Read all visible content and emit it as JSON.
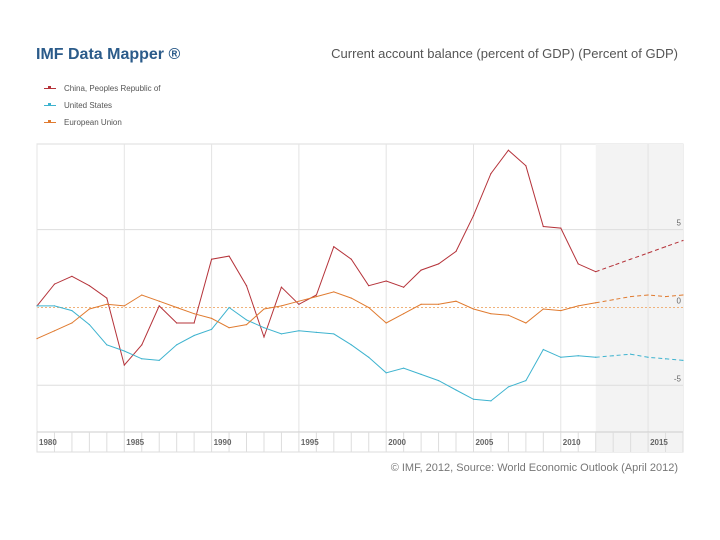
{
  "header": {
    "brand": "IMF Data Mapper ®",
    "title": "Current account balance (percent of GDP) (Percent of GDP)"
  },
  "footer": {
    "source": "© IMF, 2012, Source: World Economic Outlook (April 2012)"
  },
  "chart_data": {
    "type": "line",
    "title": "Current account balance (percent of GDP) (Percent of GDP)",
    "xlabel": "",
    "ylabel": "",
    "xlim": [
      1980,
      2017
    ],
    "ylim": [
      -8,
      10.5
    ],
    "projection_start": 2012,
    "grid": true,
    "legend_position": "top-left",
    "yticks": [
      5,
      0,
      -5
    ],
    "xticks": [
      1980,
      1985,
      1990,
      1995,
      2000,
      2005,
      2010,
      2015
    ],
    "x": [
      1980,
      1981,
      1982,
      1983,
      1984,
      1985,
      1986,
      1987,
      1988,
      1989,
      1990,
      1991,
      1992,
      1993,
      1994,
      1995,
      1996,
      1997,
      1998,
      1999,
      2000,
      2001,
      2002,
      2003,
      2004,
      2005,
      2006,
      2007,
      2008,
      2009,
      2010,
      2011,
      2012,
      2013,
      2014,
      2015,
      2016,
      2017
    ],
    "series": [
      {
        "name": "China, Peoples Republic of",
        "color": "#b5333a",
        "values": [
          0.1,
          1.5,
          2.0,
          1.4,
          0.6,
          -3.7,
          -2.4,
          0.1,
          -1.0,
          -1.0,
          3.1,
          3.3,
          1.4,
          -1.9,
          1.3,
          0.2,
          0.8,
          3.9,
          3.1,
          1.4,
          1.7,
          1.3,
          2.4,
          2.8,
          3.6,
          5.9,
          8.6,
          10.1,
          9.1,
          5.2,
          5.1,
          2.8,
          2.3,
          2.7,
          3.1,
          3.5,
          3.9,
          4.3
        ]
      },
      {
        "name": "United States",
        "color": "#3eb3cf",
        "values": [
          0.1,
          0.1,
          -0.2,
          -1.1,
          -2.4,
          -2.8,
          -3.3,
          -3.4,
          -2.4,
          -1.8,
          -1.4,
          0.0,
          -0.8,
          -1.3,
          -1.7,
          -1.5,
          -1.6,
          -1.7,
          -2.4,
          -3.2,
          -4.2,
          -3.9,
          -4.3,
          -4.7,
          -5.3,
          -5.9,
          -6.0,
          -5.1,
          -4.7,
          -2.7,
          -3.2,
          -3.1,
          -3.2,
          -3.1,
          -3.0,
          -3.2,
          -3.3,
          -3.4
        ]
      },
      {
        "name": "European Union",
        "color": "#e07b30",
        "values": [
          -2.0,
          -1.5,
          -1.0,
          -0.1,
          0.2,
          0.1,
          0.8,
          0.4,
          0.0,
          -0.4,
          -0.7,
          -1.3,
          -1.1,
          -0.1,
          0.1,
          0.4,
          0.7,
          1.0,
          0.6,
          0.0,
          -1.0,
          -0.4,
          0.2,
          0.2,
          0.4,
          -0.1,
          -0.4,
          -0.5,
          -1.0,
          -0.1,
          -0.2,
          0.1,
          0.3,
          0.5,
          0.7,
          0.8,
          0.7,
          0.8
        ]
      }
    ]
  }
}
